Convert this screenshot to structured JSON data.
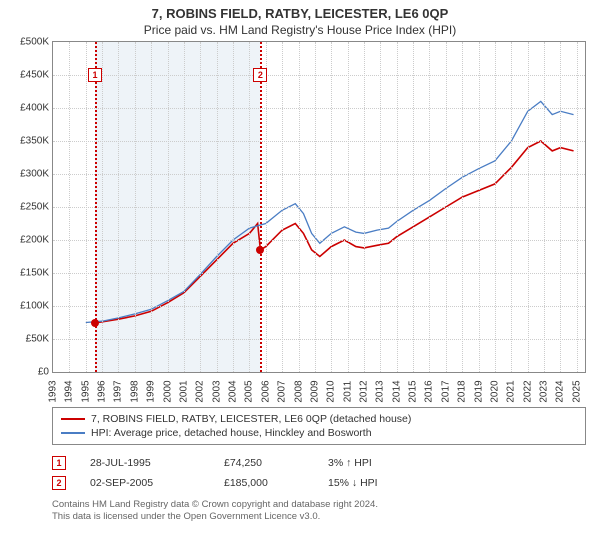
{
  "title": "7, ROBINS FIELD, RATBY, LEICESTER, LE6 0QP",
  "subtitle": "Price paid vs. HM Land Registry's House Price Index (HPI)",
  "chart": {
    "background_color": "#ffffff",
    "shaded_color": "#eef3f8",
    "grid_color": "#cccccc",
    "border_color": "#888888",
    "ylim": [
      0,
      500000
    ],
    "ytick_step": 50000,
    "ytick_labels": [
      "£0",
      "£50K",
      "£100K",
      "£150K",
      "£200K",
      "£250K",
      "£300K",
      "£350K",
      "£400K",
      "£450K",
      "£500K"
    ],
    "xlim": [
      1993,
      2025.5
    ],
    "xticks": [
      1993,
      1994,
      1995,
      1996,
      1997,
      1998,
      1999,
      2000,
      2001,
      2002,
      2003,
      2004,
      2005,
      2006,
      2007,
      2008,
      2009,
      2010,
      2011,
      2012,
      2013,
      2014,
      2015,
      2016,
      2017,
      2018,
      2019,
      2020,
      2021,
      2022,
      2023,
      2024,
      2025
    ],
    "marker_box_border": "#cc0000",
    "vline_color": "#cc0000",
    "sale_dot_color": "#cc0000",
    "series": [
      {
        "label": "7, ROBINS FIELD, RATBY, LEICESTER, LE6 0QP (detached house)",
        "color": "#cc0000",
        "line_width": 1.6,
        "data": [
          [
            1995.57,
            74250
          ],
          [
            1996,
            76000
          ],
          [
            1997,
            80000
          ],
          [
            1998,
            85000
          ],
          [
            1999,
            92000
          ],
          [
            2000,
            105000
          ],
          [
            2001,
            120000
          ],
          [
            2002,
            145000
          ],
          [
            2003,
            170000
          ],
          [
            2004,
            195000
          ],
          [
            2005,
            210000
          ],
          [
            2005.5,
            225000
          ],
          [
            2005.67,
            185000
          ],
          [
            2006,
            190000
          ],
          [
            2007,
            215000
          ],
          [
            2007.8,
            225000
          ],
          [
            2008.3,
            210000
          ],
          [
            2008.8,
            185000
          ],
          [
            2009.3,
            175000
          ],
          [
            2010,
            190000
          ],
          [
            2010.8,
            200000
          ],
          [
            2011.5,
            190000
          ],
          [
            2012,
            188000
          ],
          [
            2012.8,
            192000
          ],
          [
            2013.5,
            195000
          ],
          [
            2014,
            205000
          ],
          [
            2015,
            220000
          ],
          [
            2016,
            235000
          ],
          [
            2017,
            250000
          ],
          [
            2018,
            265000
          ],
          [
            2019,
            275000
          ],
          [
            2020,
            285000
          ],
          [
            2021,
            310000
          ],
          [
            2022,
            340000
          ],
          [
            2022.8,
            350000
          ],
          [
            2023.5,
            335000
          ],
          [
            2024,
            340000
          ],
          [
            2024.8,
            335000
          ]
        ]
      },
      {
        "label": "HPI: Average price, detached house, Hinckley and Bosworth",
        "color": "#4a7dc4",
        "line_width": 1.3,
        "data": [
          [
            1995,
            75000
          ],
          [
            1996,
            77000
          ],
          [
            1997,
            82000
          ],
          [
            1998,
            88000
          ],
          [
            1999,
            95000
          ],
          [
            2000,
            108000
          ],
          [
            2001,
            122000
          ],
          [
            2002,
            148000
          ],
          [
            2003,
            175000
          ],
          [
            2004,
            200000
          ],
          [
            2005,
            218000
          ],
          [
            2006,
            225000
          ],
          [
            2007,
            245000
          ],
          [
            2007.8,
            255000
          ],
          [
            2008.3,
            240000
          ],
          [
            2008.8,
            210000
          ],
          [
            2009.3,
            195000
          ],
          [
            2010,
            210000
          ],
          [
            2010.8,
            220000
          ],
          [
            2011.5,
            212000
          ],
          [
            2012,
            210000
          ],
          [
            2012.8,
            215000
          ],
          [
            2013.5,
            218000
          ],
          [
            2014,
            228000
          ],
          [
            2015,
            245000
          ],
          [
            2016,
            260000
          ],
          [
            2017,
            278000
          ],
          [
            2018,
            295000
          ],
          [
            2019,
            308000
          ],
          [
            2020,
            320000
          ],
          [
            2021,
            350000
          ],
          [
            2022,
            395000
          ],
          [
            2022.8,
            410000
          ],
          [
            2023.5,
            390000
          ],
          [
            2024,
            395000
          ],
          [
            2024.8,
            390000
          ]
        ]
      }
    ],
    "sale_markers": [
      {
        "n": "1",
        "x": 1995.57,
        "y": 74250,
        "box_top_pct": 8
      },
      {
        "n": "2",
        "x": 2005.67,
        "y": 185000,
        "box_top_pct": 8
      }
    ],
    "shaded_ranges": [
      [
        1995.57,
        2005.67
      ]
    ]
  },
  "legend": [
    {
      "label": "7, ROBINS FIELD, RATBY, LEICESTER, LE6 0QP (detached house)",
      "color": "#cc0000"
    },
    {
      "label": "HPI: Average price, detached house, Hinckley and Bosworth",
      "color": "#4a7dc4"
    }
  ],
  "sales_rows": [
    {
      "n": "1",
      "date": "28-JUL-1995",
      "price": "£74,250",
      "hpi": "3% ↑ HPI"
    },
    {
      "n": "2",
      "date": "02-SEP-2005",
      "price": "£185,000",
      "hpi": "15% ↓ HPI"
    }
  ],
  "footer_line1": "Contains HM Land Registry data © Crown copyright and database right 2024.",
  "footer_line2": "This data is licensed under the Open Government Licence v3.0."
}
